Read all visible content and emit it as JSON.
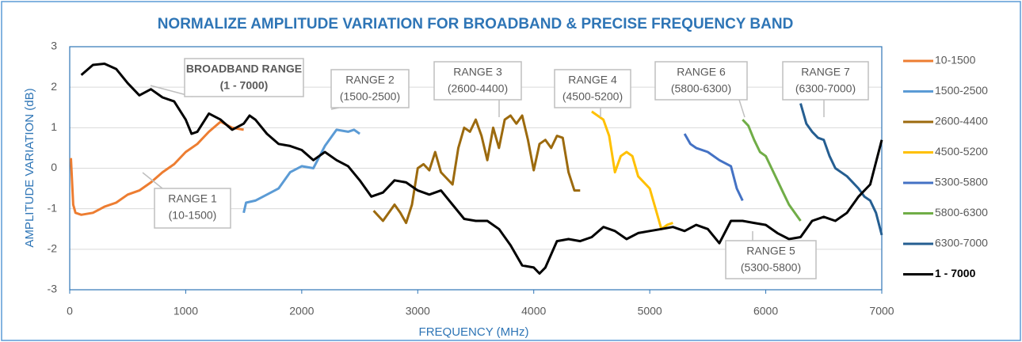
{
  "chart_data": {
    "type": "line",
    "title": "NORMALIZE AMPLITUDE VARIATION FOR BROADBAND & PRECISE FREQUENCY BAND",
    "x_label": "FREQUENCY (MHz)",
    "y_label": "AMPLITUDE VARIATION (dB)",
    "xlim": [
      0,
      7000
    ],
    "xticks": [
      0,
      1000,
      2000,
      3000,
      4000,
      5000,
      6000,
      7000
    ],
    "ylim": [
      -3,
      3
    ],
    "yticks": [
      -3,
      -2,
      -1,
      0,
      1,
      2,
      3
    ],
    "grid": true,
    "legend": "right",
    "series": [
      {
        "name": "10-1500",
        "color": "#ed7d31",
        "x": [
          10,
          30,
          50,
          100,
          200,
          300,
          400,
          500,
          600,
          700,
          800,
          900,
          1000,
          1100,
          1200,
          1300,
          1400,
          1500
        ],
        "values": [
          0.25,
          -0.9,
          -1.1,
          -1.15,
          -1.1,
          -0.95,
          -0.85,
          -0.65,
          -0.55,
          -0.35,
          -0.1,
          0.1,
          0.4,
          0.6,
          0.9,
          1.15,
          1.0,
          0.95
        ]
      },
      {
        "name": "1500-2500",
        "color": "#5b9bd5",
        "x": [
          1500,
          1520,
          1600,
          1700,
          1800,
          1900,
          2000,
          2100,
          2200,
          2300,
          2400,
          2450,
          2500
        ],
        "values": [
          -1.1,
          -0.85,
          -0.8,
          -0.65,
          -0.5,
          -0.1,
          0.05,
          0.0,
          0.55,
          0.95,
          0.9,
          0.95,
          0.85
        ]
      },
      {
        "name": "2600-4400",
        "color": "#9c6a0e",
        "x": [
          2620,
          2700,
          2800,
          2850,
          2900,
          2950,
          3000,
          3050,
          3100,
          3150,
          3200,
          3300,
          3350,
          3400,
          3450,
          3500,
          3550,
          3600,
          3650,
          3700,
          3750,
          3800,
          3850,
          3900,
          3950,
          4000,
          4050,
          4100,
          4150,
          4200,
          4250,
          4300,
          4350,
          4400
        ],
        "values": [
          -1.05,
          -1.3,
          -0.9,
          -1.1,
          -1.35,
          -0.9,
          0,
          0.1,
          -0.05,
          0.4,
          -0.1,
          -0.4,
          0.5,
          1.0,
          0.9,
          1.2,
          0.8,
          0.2,
          1.0,
          0.5,
          1.2,
          1.3,
          1.1,
          1.3,
          0.7,
          -0.05,
          0.6,
          0.7,
          0.5,
          0.8,
          0.75,
          -0.1,
          -0.55,
          -0.55
        ]
      },
      {
        "name": "4500-5200",
        "color": "#ffc000",
        "x": [
          4500,
          4600,
          4650,
          4700,
          4750,
          4800,
          4850,
          4900,
          5000,
          5050,
          5100,
          5150,
          5200
        ],
        "values": [
          1.4,
          1.2,
          0.8,
          -0.1,
          0.3,
          0.4,
          0.3,
          -0.2,
          -0.5,
          -1.0,
          -1.5,
          -1.4,
          -1.35
        ]
      },
      {
        "name": "5300-5800",
        "color": "#4472c4",
        "x": [
          5300,
          5350,
          5400,
          5500,
          5600,
          5700,
          5750,
          5800
        ],
        "values": [
          0.85,
          0.6,
          0.5,
          0.4,
          0.2,
          0.05,
          -0.5,
          -0.8
        ]
      },
      {
        "name": "5800-6300",
        "color": "#70ad47",
        "x": [
          5800,
          5850,
          5900,
          5950,
          6000,
          6050,
          6100,
          6150,
          6200,
          6250,
          6300
        ],
        "values": [
          1.2,
          1.05,
          0.7,
          0.4,
          0.3,
          0,
          -0.3,
          -0.6,
          -0.9,
          -1.1,
          -1.3
        ]
      },
      {
        "name": "6300-7000",
        "color": "#255e91",
        "x": [
          6300,
          6350,
          6400,
          6450,
          6500,
          6550,
          6600,
          6700,
          6800,
          6850,
          6900,
          6950,
          7000
        ],
        "values": [
          1.6,
          1.1,
          0.9,
          0.75,
          0.7,
          0.3,
          0,
          -0.2,
          -0.5,
          -0.7,
          -0.8,
          -1.1,
          -1.65
        ]
      },
      {
        "name": "1 - 7000",
        "color": "#000000",
        "bold": true,
        "x": [
          100,
          200,
          300,
          400,
          500,
          600,
          700,
          800,
          900,
          1000,
          1050,
          1100,
          1200,
          1300,
          1400,
          1500,
          1550,
          1600,
          1700,
          1800,
          1900,
          2000,
          2100,
          2200,
          2300,
          2400,
          2500,
          2600,
          2700,
          2800,
          2900,
          3000,
          3100,
          3200,
          3300,
          3400,
          3500,
          3600,
          3700,
          3800,
          3900,
          4000,
          4050,
          4100,
          4200,
          4300,
          4400,
          4500,
          4600,
          4700,
          4800,
          4900,
          5000,
          5100,
          5200,
          5300,
          5400,
          5500,
          5600,
          5700,
          5800,
          5900,
          6000,
          6100,
          6200,
          6300,
          6400,
          6500,
          6600,
          6700,
          6800,
          6900,
          7000
        ],
        "values": [
          2.3,
          2.55,
          2.58,
          2.45,
          2.1,
          1.8,
          1.95,
          1.75,
          1.65,
          1.2,
          0.85,
          0.9,
          1.35,
          1.2,
          0.95,
          1.1,
          1.3,
          1.2,
          0.85,
          0.6,
          0.55,
          0.45,
          0.2,
          0.4,
          0.2,
          0.05,
          -0.3,
          -0.7,
          -0.6,
          -0.3,
          -0.35,
          -0.55,
          -0.65,
          -0.55,
          -0.9,
          -1.25,
          -1.3,
          -1.3,
          -1.5,
          -1.9,
          -2.4,
          -2.45,
          -2.6,
          -2.45,
          -1.8,
          -1.75,
          -1.8,
          -1.7,
          -1.45,
          -1.55,
          -1.75,
          -1.6,
          -1.55,
          -1.5,
          -1.45,
          -1.55,
          -1.4,
          -1.5,
          -1.85,
          -1.3,
          -1.3,
          -1.35,
          -1.4,
          -1.6,
          -1.75,
          -1.7,
          -1.3,
          -1.2,
          -1.3,
          -1.1,
          -0.7,
          -0.4,
          0.7
        ]
      }
    ],
    "annotations": [
      {
        "lines": [
          "BROADBAND RANGE",
          "(1 - 7000)"
        ],
        "bold": true
      },
      {
        "lines": [
          "RANGE 1",
          "(10-1500)"
        ]
      },
      {
        "lines": [
          "RANGE 2",
          "(1500-2500)"
        ]
      },
      {
        "lines": [
          "RANGE 3",
          "(2600-4400)"
        ]
      },
      {
        "lines": [
          "RANGE 4",
          "(4500-5200)"
        ]
      },
      {
        "lines": [
          "RANGE 5",
          "(5300-5800)"
        ]
      },
      {
        "lines": [
          "RANGE 6",
          "(5800-6300)"
        ]
      },
      {
        "lines": [
          "RANGE 7",
          "(6300-7000)"
        ]
      }
    ]
  }
}
